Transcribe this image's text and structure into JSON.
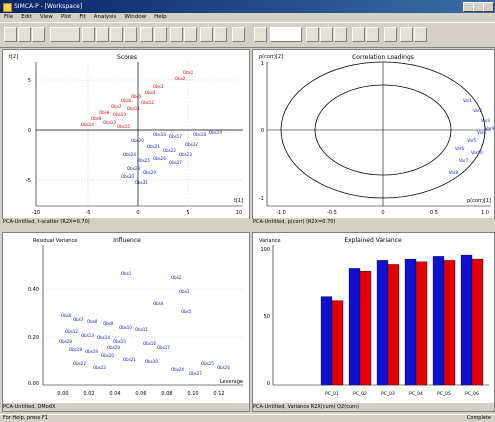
{
  "window": {
    "title": "SIMCA-P - [Workspace]"
  },
  "menu": [
    "File",
    "Edit",
    "View",
    "Plot",
    "Fit",
    "Analysis",
    "Window",
    "Help"
  ],
  "colors": {
    "red": "#e00000",
    "blue": "#1010d0"
  },
  "panes": {
    "scores": {
      "title": "Scores",
      "corner": "t[2]",
      "xaxis_label": "t[1]",
      "xticks": [
        "-10",
        "-5",
        "0",
        "5",
        "10"
      ],
      "yticks": [
        "5",
        "0",
        "-5"
      ],
      "status": "PCA-Untitled, t-scatter (R2X=0.70)"
    },
    "loadings": {
      "title": "Correlation Loadings",
      "corner": "p(corr)[2]",
      "xaxis_label": "p(corr)[1]",
      "xticks": [
        "-1.0",
        "-0.5",
        "0",
        "0.5",
        "1.0"
      ],
      "yticks": [
        "1",
        "0",
        "-1"
      ],
      "status": "PCA-Untitled, p(corr) (R2X=0.70)"
    },
    "residual": {
      "title": "Residual Variance",
      "title2": "Influence",
      "xaxis_label": "Leverage",
      "xticks": [
        "0.00",
        "0.02",
        "0.04",
        "0.06",
        "0.08",
        "0.10",
        "0.12"
      ],
      "yticks": [
        "0.40",
        "0.20",
        "0.00"
      ],
      "status": "PCA-Untitled, DModX"
    },
    "explained": {
      "title": "Explained Variance",
      "corner": "Variance",
      "yticks": [
        "100",
        "50",
        "0"
      ],
      "status": "PCA-Untitled, Variance  R2X(cum)  Q2(cum)"
    }
  },
  "chart_data": {
    "type": "bar",
    "title": "Explained Variance",
    "categories": [
      "PC_01",
      "PC_02",
      "PC_03",
      "PC_04",
      "PC_05",
      "PC_06"
    ],
    "ylim": [
      0,
      100
    ],
    "series": [
      {
        "name": "R2X(cum)",
        "color": "#1010d0",
        "values": [
          66,
          87,
          93,
          94,
          96,
          97
        ]
      },
      {
        "name": "Q2(cum)",
        "color": "#e00000",
        "values": [
          63,
          85,
          90,
          92,
          93,
          94
        ]
      }
    ]
  },
  "statusbar": {
    "left": "For Help, press F1",
    "right": "Complete"
  }
}
